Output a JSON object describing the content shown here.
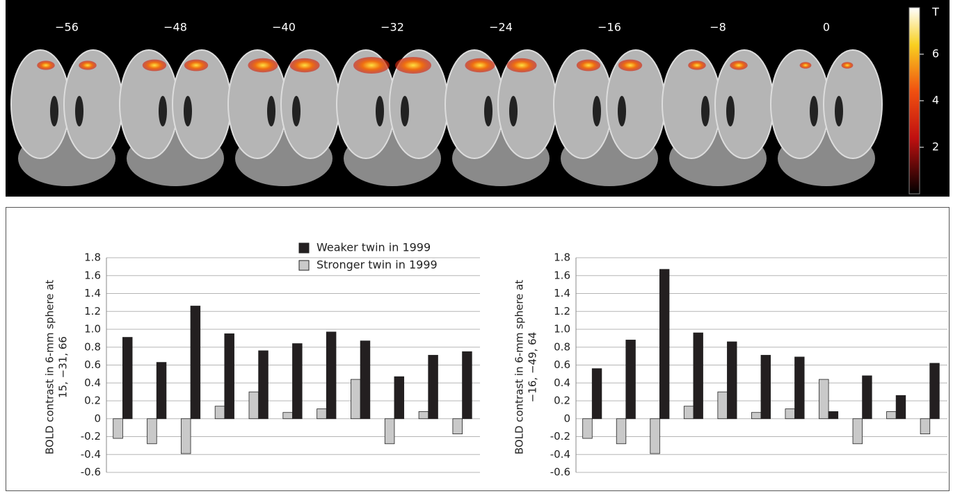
{
  "brain_panel": {
    "slice_labels": [
      "−56",
      "−48",
      "−40",
      "−32",
      "−24",
      "−16",
      "−8",
      "0"
    ],
    "colorbar": {
      "label": "T",
      "clim": [
        0,
        8
      ],
      "ticks": [
        2,
        4,
        6
      ]
    }
  },
  "chart_data": [
    {
      "type": "bar",
      "y_label_lines": [
        "BOLD contrast in 6-mm sphere at",
        "15, −31, 66"
      ],
      "categories": [
        null,
        null,
        null,
        null,
        null,
        null,
        null,
        null,
        null,
        null,
        null
      ],
      "series": [
        {
          "name": "Weaker twin in 1999",
          "color": "#231f20",
          "values": [
            0.91,
            0.63,
            1.26,
            0.95,
            0.76,
            0.84,
            0.97,
            0.87,
            0.47,
            0.71,
            0.75
          ]
        },
        {
          "name": "Stronger twin in 1999",
          "color": "#c9c9c9",
          "values": [
            -0.22,
            -0.28,
            -0.39,
            0.14,
            0.3,
            0.07,
            0.11,
            0.44,
            -0.28,
            0.08,
            -0.17
          ]
        }
      ],
      "ylim": [
        -0.6,
        1.8
      ],
      "yticks": [
        1.8,
        1.6,
        1.4,
        1.2,
        {
          "value": 1,
          "label": "1.0"
        },
        0.8,
        0.6,
        0.4,
        0.2,
        0,
        -0.2,
        -0.4,
        -0.6
      ],
      "grid": true,
      "legend": "upper right"
    },
    {
      "type": "bar",
      "y_label_lines": [
        "BOLD contrast in 6-mm sphere at",
        "−16, −49, 64"
      ],
      "categories": [
        null,
        null,
        null,
        null,
        null,
        null,
        null,
        null,
        null,
        null,
        null
      ],
      "series": [
        {
          "color": "#231f20",
          "values": [
            0.56,
            0.88,
            1.67,
            0.96,
            0.86,
            0.71,
            0.69,
            0.08,
            0.48,
            0.26,
            0.62
          ]
        },
        {
          "color": "#c9c9c9",
          "values": [
            -0.22,
            -0.28,
            -0.39,
            0.14,
            0.3,
            0.07,
            0.11,
            0.44,
            -0.28,
            0.08,
            -0.17
          ]
        }
      ],
      "ylim": [
        -0.6,
        1.8
      ],
      "yticks": [
        1.8,
        1.6,
        1.4,
        1.2,
        {
          "value": 1,
          "label": "1.0"
        },
        0.8,
        0.6,
        0.4,
        0.2,
        0,
        -0.2,
        -0.4,
        -0.6
      ],
      "grid": true
    }
  ]
}
